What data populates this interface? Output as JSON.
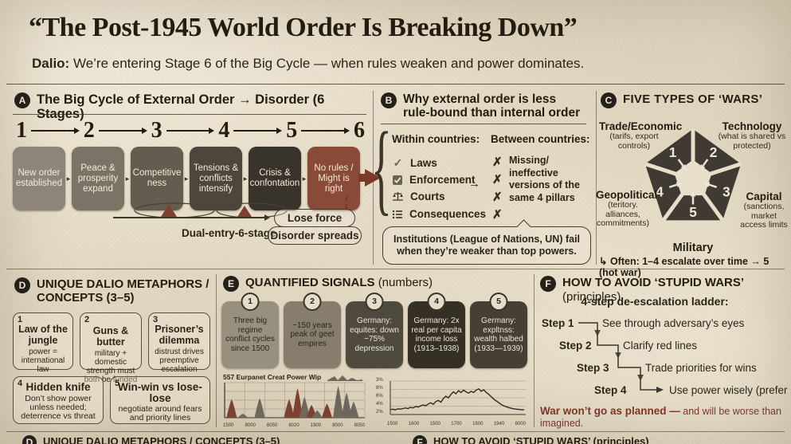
{
  "page": {
    "title": "“The Post-1945 World Order Is Breaking Down”",
    "subtitle_bold": "Dalio:",
    "subtitle_rest": " We’re entering Stage 6 of the Big Cycle — when rules weaken and power dominates."
  },
  "icons": {
    "arrow_right": "→",
    "check": "✓",
    "cross": "✗",
    "stage_arrow": "▸"
  },
  "sections": {
    "a": {
      "badge": "A",
      "title": "The Big Cycle of External Order → Disorder (6 Stages)",
      "stage_numbers": [
        "1",
        "2",
        "3",
        "4",
        "5",
        "6"
      ],
      "stages": [
        {
          "label": "New order established",
          "color": "#8d8579"
        },
        {
          "label": "Peace & prosperity expand",
          "color": "#7b7365"
        },
        {
          "label": "Competitive ness",
          "color": "#635c4f"
        },
        {
          "label": "Tensions & conflicts intensify",
          "color": "#4c463c"
        },
        {
          "label": "Crisis & confontation",
          "color": "#38342c"
        },
        {
          "label": "No rules / Might is right",
          "color": "#8a4a38"
        }
      ],
      "dual_label": "Dual-entry-6-stage",
      "lose_force": "Lose force",
      "disorder_spreads": "Disorder spreads"
    },
    "b": {
      "badge": "B",
      "title_line1": "Why external order is less",
      "title_line2": "rule-bound than internal order",
      "within_header": "Within countries:",
      "between_header": "Between countries:",
      "within_items": [
        "Laws",
        "Enforcement",
        "Courts",
        "Consequences"
      ],
      "between_lines": [
        "Missing/",
        "ineffective",
        "versions of the",
        "same 4 pillars"
      ],
      "footnote_line1": "Institutions (League of Nations, UN) fail",
      "footnote_line2": "when they’re weaker than top powers."
    },
    "c": {
      "badge": "C",
      "title": "FIVE TYPES OF ‘WARS’",
      "nodes": [
        {
          "num": "1",
          "name": "Trade/Economic",
          "sub": "(tarifs, export controls)"
        },
        {
          "num": "2",
          "name": "Technology",
          "sub": "(what is shared vs protected)"
        },
        {
          "num": "3",
          "name": "Capital",
          "sub": "(sanctions, market access limits"
        },
        {
          "num": "4",
          "name": "Geopolitical",
          "sub": "(teritory. alliances, commitments)"
        },
        {
          "num": "5",
          "name": "Military",
          "sub": ""
        }
      ],
      "footnote": "↳ Often: 1–4 escalate over time → 5 (hot war)"
    },
    "d": {
      "badge": "D",
      "title_line1": "UNIQUE DALIO METAPHORS /",
      "title_line2": "CONCEPTS (3–5)",
      "cards": [
        {
          "num": "1",
          "title": "Law of the jungle",
          "desc": "power = international law"
        },
        {
          "num": "2",
          "title": "Guns & butter",
          "desc": "military + domestic strength must both be funded"
        },
        {
          "num": "3",
          "title": "Prisoner’s dilemma",
          "desc": "distrust drives preemptive escalation"
        },
        {
          "num": "4",
          "title": "Hidden knife",
          "desc": "Don’t show power unless needed; deterrence vs threat"
        },
        {
          "num": "5",
          "title": "Win-win vs lose-lose",
          "desc": "negotiate around fears and priority lines"
        }
      ]
    },
    "e": {
      "badge": "E",
      "title": "QUANTIFIED SIGNALS",
      "title_suffix": "(numbers)",
      "cards": [
        {
          "num": "1",
          "text": "Three big regime conflict cycles since 1500",
          "bg": "#98907f",
          "fg": "#2a251c"
        },
        {
          "num": "2",
          "text": "~150 years peak of geet empires",
          "bg": "#867d6d",
          "fg": "#2a251c"
        },
        {
          "num": "3",
          "text": "Germany: equites: down ~75% depression",
          "bg": "#4f4a3e",
          "fg": "#ece4d4"
        },
        {
          "num": "4",
          "text": "Germany: 2x real per capita income loss (1913–1938)",
          "bg": "#353026",
          "fg": "#ece4d4"
        },
        {
          "num": "5",
          "text": "Germany: expltnss: wealth halbed (1933—1939)",
          "bg": "#453f34",
          "fg": "#ece4d4"
        }
      ]
    },
    "f": {
      "badge": "F",
      "title": "HOW TO AVOID ‘STUPID WARS’",
      "title_suffix": "(principles)",
      "ladder_title": "4-step de-escalation ladder:",
      "steps": [
        {
          "label": "Step 1",
          "text": "See through adversary’s eyes"
        },
        {
          "label": "Step 2",
          "text": "Clarify red lines"
        },
        {
          "label": "Step 3",
          "text": "Trade priorities for wins"
        },
        {
          "label": "Step 4",
          "text": "Use power wisely (prefer soft power)"
        }
      ],
      "warning_bold": "War won’t go as planned —",
      "warning_rest": " and will be worse than imagined."
    }
  },
  "bottom_strip": {
    "left_badge": "D",
    "left_text": "UNIQUE DALIO METAPHORS / CONCEPTS (3–5)",
    "right_badge": "F",
    "right_text": "HOW TO AVOID ‘STUPID WARS’ (principles)"
  },
  "chart_data": [
    {
      "type": "area",
      "title": "557 Eurpanet Creat Power Wip",
      "x_tick_labels": [
        "1500",
        "8000",
        "8050",
        "8020",
        "1900",
        "8000",
        "8050"
      ],
      "peaks": [
        {
          "x": 5,
          "h": 55,
          "c": "red"
        },
        {
          "x": 13,
          "h": 12,
          "c": "gray"
        },
        {
          "x": 25,
          "h": 58,
          "c": "gray"
        },
        {
          "x": 46,
          "h": 55,
          "c": "red"
        },
        {
          "x": 52,
          "h": 88,
          "c": "red"
        },
        {
          "x": 57,
          "h": 62,
          "c": "gray"
        },
        {
          "x": 62,
          "h": 38,
          "c": "red"
        },
        {
          "x": 66,
          "h": 22,
          "c": "gray"
        },
        {
          "x": 73,
          "h": 42,
          "c": "red"
        },
        {
          "x": 81,
          "h": 95,
          "c": "gray"
        },
        {
          "x": 87,
          "h": 75,
          "c": "gray"
        },
        {
          "x": 92,
          "h": 48,
          "c": "gray"
        }
      ],
      "palette": {
        "red": "#7e4030",
        "gray": "#6d675c"
      }
    },
    {
      "type": "line",
      "y_tick_labels": [
        "3%",
        "8%",
        "6%",
        "4%",
        "2%"
      ],
      "x_tick_labels": [
        "1500",
        "1600",
        "1500",
        "1700",
        "1900",
        "1940",
        "8000"
      ],
      "values": [
        14,
        15,
        13,
        16,
        15,
        17,
        19,
        17,
        21,
        19,
        24,
        22,
        26,
        29,
        26,
        32,
        36,
        31,
        40,
        44,
        38,
        50,
        58,
        52,
        64,
        72,
        66,
        76,
        70,
        78,
        72,
        68,
        74,
        70,
        78,
        82,
        74,
        79,
        70,
        64,
        56,
        48,
        42,
        36,
        30,
        26,
        23,
        20,
        18,
        16,
        15,
        14,
        13,
        13
      ]
    }
  ]
}
